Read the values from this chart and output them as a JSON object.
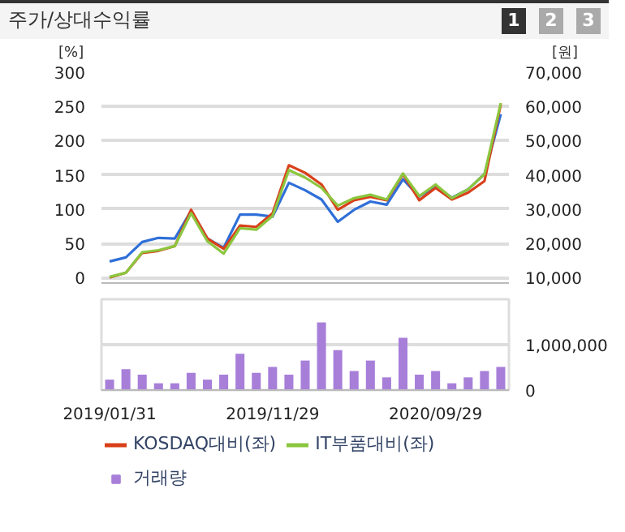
{
  "chart_data": [
    {
      "type": "line",
      "title": "주가/상대수익률",
      "annotations": [
        "1",
        "2",
        "3"
      ],
      "ylabel": "[%]",
      "y2label": "[원]",
      "categories": [
        "2019/01/31",
        null,
        null,
        null,
        null,
        null,
        null,
        null,
        null,
        null,
        "2019/11/29",
        null,
        null,
        null,
        null,
        null,
        null,
        null,
        null,
        null,
        "2020/09/29",
        null,
        null,
        null,
        null
      ],
      "series": [
        {
          "color": "#2f6fd8",
          "axis": "y2",
          "values": [
            14700,
            15900,
            20400,
            21600,
            21400,
            29500,
            21400,
            18700,
            28400,
            28400,
            27800,
            37700,
            35500,
            32800,
            26300,
            29800,
            32200,
            31300,
            38700,
            33700,
            36700,
            33300,
            35800,
            40200,
            57700
          ]
        },
        {
          "name": "KOSDAQ대비(좌)",
          "color": "#d9401a",
          "values": [
            0,
            7,
            36,
            39,
            46,
            99,
            57,
            42,
            76,
            74,
            94,
            164,
            153,
            136,
            99,
            113,
            118,
            113,
            151,
            113,
            131,
            114,
            124,
            141,
            253
          ]
        },
        {
          "name": "IT부품대비(좌)",
          "color": "#8cc63f",
          "values": [
            1,
            7,
            37,
            40,
            46,
            94,
            53,
            35,
            72,
            70,
            90,
            157,
            146,
            131,
            105,
            116,
            121,
            114,
            152,
            119,
            136,
            116,
            129,
            151,
            255
          ]
        }
      ],
      "ylim": [
        -8,
        300
      ],
      "yticks": [
        0,
        50,
        100,
        150,
        200,
        250,
        300
      ],
      "y2lim": [
        8400,
        70000
      ],
      "y2ticks": [
        {
          "value": 10000,
          "label": "10,000"
        },
        {
          "value": 20000,
          "label": "20,000"
        },
        {
          "value": 30000,
          "label": "30,000"
        },
        {
          "value": 40000,
          "label": "40,000"
        },
        {
          "value": 50000,
          "label": "50,000"
        },
        {
          "value": 60000,
          "label": "60,000"
        },
        {
          "value": 70000,
          "label": "70,000"
        }
      ],
      "grid": "y",
      "legend": "bottom",
      "tick_labels": "y"
    },
    {
      "type": "bar",
      "categories": [
        "2019/01/31",
        null,
        null,
        null,
        null,
        null,
        null,
        null,
        null,
        null,
        "2019/11/29",
        null,
        null,
        null,
        null,
        null,
        null,
        null,
        null,
        null,
        "2020/09/29",
        null,
        null,
        null,
        null
      ],
      "series": [
        {
          "name": "거래량",
          "color": "#a77fd9",
          "values": [
            230000,
            460000,
            340000,
            150000,
            150000,
            380000,
            230000,
            340000,
            800000,
            380000,
            510000,
            340000,
            650000,
            1490000,
            880000,
            420000,
            650000,
            280000,
            1150000,
            340000,
            420000,
            150000,
            280000,
            420000,
            510000
          ]
        }
      ],
      "ylim": [
        0,
        2000000
      ],
      "yticks": [
        {
          "value": 0,
          "label": "0"
        },
        {
          "value": 1000000,
          "label": "1,000,000"
        }
      ],
      "grid": "y",
      "legend": "bottom"
    }
  ]
}
